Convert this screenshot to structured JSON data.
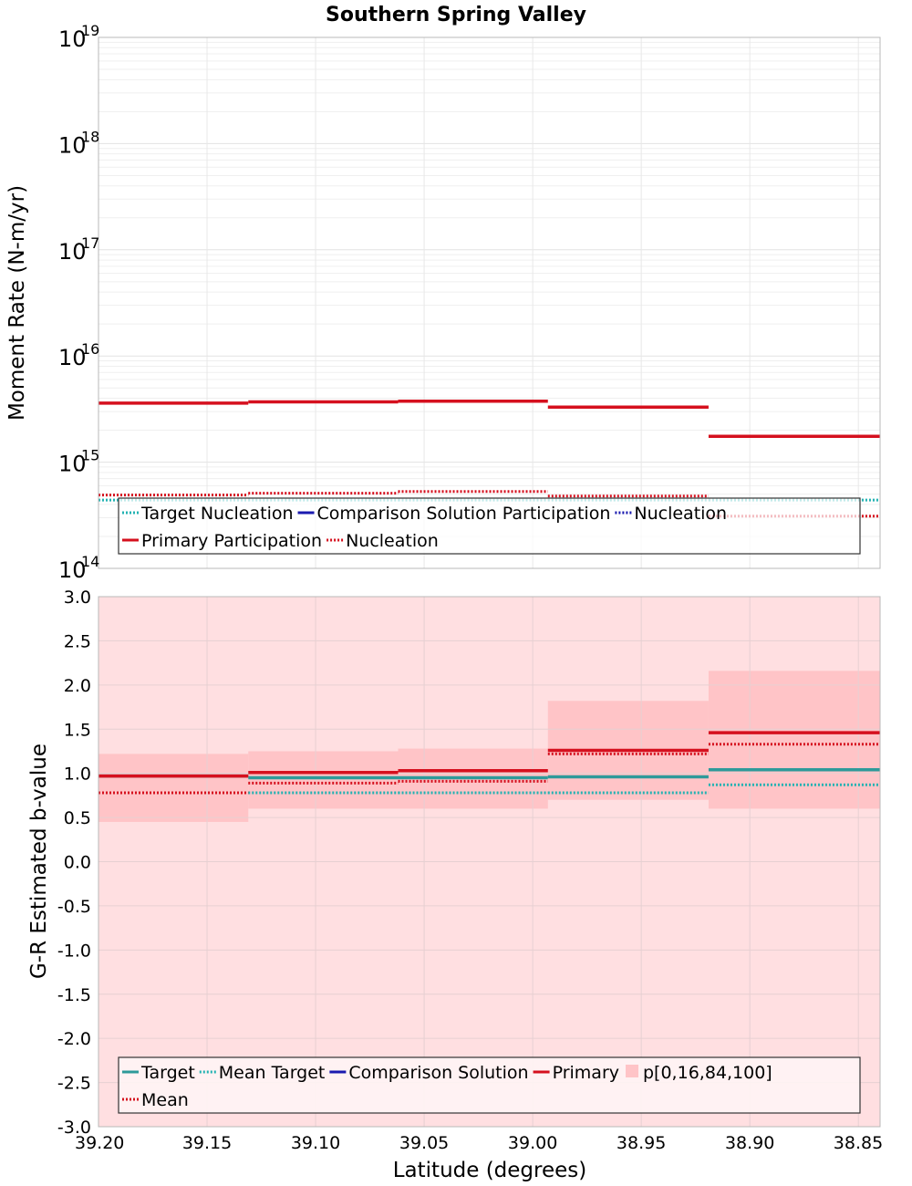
{
  "title": "Southern Spring Valley",
  "xlabel": "Latitude (degrees)",
  "x_ticks": [
    "39.20",
    "39.15",
    "39.10",
    "39.05",
    "39.00",
    "38.95",
    "38.90",
    "38.85"
  ],
  "x_tick_values": [
    39.2,
    39.15,
    39.1,
    39.05,
    39.0,
    38.95,
    38.9,
    38.85
  ],
  "xlim": [
    39.2,
    38.84
  ],
  "bins": [
    [
      39.2,
      39.131
    ],
    [
      39.131,
      39.062
    ],
    [
      39.062,
      38.993
    ],
    [
      38.993,
      38.919
    ],
    [
      38.919,
      38.84
    ]
  ],
  "colors": {
    "target": "#2e9a9a",
    "target_nucleation": "#22b2b2",
    "comparison": "#1a1aaf",
    "primary": "#d5101e",
    "band_outer": "#ffdfe1",
    "band_inner": "#ffc4c7"
  },
  "chart_data": [
    {
      "type": "line",
      "ylabel": "Moment Rate (N-m/yr)",
      "yscale": "log",
      "ylim": [
        100000000000000.0,
        1e+19
      ],
      "y_ticks": [
        {
          "base": "10",
          "exp": "14",
          "value": 100000000000000.0
        },
        {
          "base": "10",
          "exp": "15",
          "value": 1000000000000000.0
        },
        {
          "base": "10",
          "exp": "16",
          "value": 1e+16
        },
        {
          "base": "10",
          "exp": "17",
          "value": 1e+17
        },
        {
          "base": "10",
          "exp": "18",
          "value": 1e+18
        },
        {
          "base": "10",
          "exp": "19",
          "value": 1e+19
        }
      ],
      "grid": true,
      "legend_placement": "bottom",
      "legend": [
        [
          {
            "label": "Target Nucleation",
            "key": "target_nucleation",
            "style": "dotted"
          },
          {
            "label": "Comparison Solution Participation",
            "key": "comparison",
            "style": "solid"
          },
          {
            "label": "Nucleation",
            "key": "comparison",
            "style": "dotted"
          }
        ],
        [
          {
            "label": "Primary Participation",
            "key": "primary",
            "style": "solid"
          },
          {
            "label": "Nucleation",
            "key": "primary",
            "style": "dotted"
          }
        ]
      ],
      "series": [
        {
          "name": "Target Nucleation",
          "color_key": "target_nucleation",
          "style": "dotted",
          "values": [
            440000000000000.0,
            440000000000000.0,
            440000000000000.0,
            440000000000000.0,
            440000000000000.0
          ]
        },
        {
          "name": "Primary Participation",
          "color_key": "primary",
          "style": "solid",
          "values": [
            3600000000000000.0,
            3700000000000000.0,
            3750000000000000.0,
            3300000000000000.0,
            1750000000000000.0
          ]
        },
        {
          "name": "Nucleation",
          "color_key": "primary",
          "style": "dotted",
          "values": [
            490000000000000.0,
            510000000000000.0,
            530000000000000.0,
            480000000000000.0,
            310000000000000.0
          ]
        }
      ]
    },
    {
      "type": "line",
      "ylabel": "G-R Estimated b-value",
      "yscale": "linear",
      "ylim": [
        -3.0,
        3.0
      ],
      "y_ticks": [
        "3.0",
        "2.5",
        "2.0",
        "1.5",
        "1.0",
        "0.5",
        "0.0",
        "-0.5",
        "-1.0",
        "-1.5",
        "-2.0",
        "-2.5",
        "-3.0"
      ],
      "y_tick_values": [
        3.0,
        2.5,
        2.0,
        1.5,
        1.0,
        0.5,
        0.0,
        -0.5,
        -1.0,
        -1.5,
        -2.0,
        -2.5,
        -3.0
      ],
      "grid": true,
      "legend_placement": "bottom",
      "legend": [
        [
          {
            "label": "Target",
            "key": "target",
            "style": "solid"
          },
          {
            "label": "Mean Target",
            "key": "target_nucleation",
            "style": "dotted"
          },
          {
            "label": "Comparison Solution",
            "key": "comparison",
            "style": "solid"
          },
          {
            "label": "Primary",
            "key": "primary",
            "style": "solid"
          },
          {
            "label": "p[0,16,84,100]",
            "key": "band_inner",
            "style": "box"
          }
        ],
        [
          {
            "label": "Mean",
            "key": "primary",
            "style": "dotted"
          }
        ]
      ],
      "band_outer": {
        "low": -3.0,
        "high": 3.0
      },
      "band_inner": {
        "low": [
          0.45,
          0.6,
          0.6,
          0.7,
          0.6
        ],
        "high": [
          1.22,
          1.25,
          1.28,
          1.82,
          2.16
        ]
      },
      "series": [
        {
          "name": "Target",
          "color_key": "target",
          "style": "solid",
          "values": [
            0.97,
            0.95,
            0.95,
            0.96,
            1.04
          ]
        },
        {
          "name": "Mean Target",
          "color_key": "target_nucleation",
          "style": "dotted",
          "values": [
            0.78,
            0.78,
            0.78,
            0.78,
            0.87
          ]
        },
        {
          "name": "Primary",
          "color_key": "primary",
          "style": "solid",
          "values": [
            0.97,
            1.01,
            1.03,
            1.26,
            1.46
          ]
        },
        {
          "name": "Mean",
          "color_key": "primary",
          "style": "dotted",
          "values": [
            0.78,
            0.89,
            0.91,
            1.22,
            1.33
          ]
        }
      ]
    }
  ]
}
